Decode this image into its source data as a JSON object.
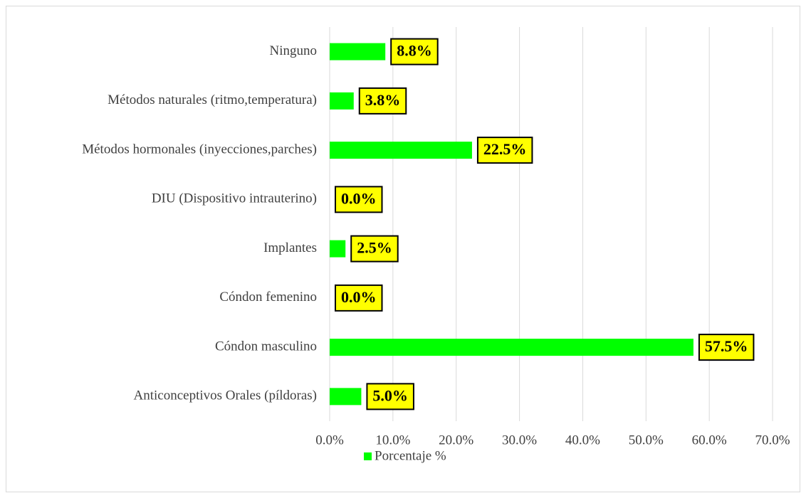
{
  "chart_data": {
    "type": "bar",
    "orientation": "horizontal",
    "categories": [
      "Ninguno",
      "Métodos naturales (ritmo,temperatura)",
      "Métodos hormonales (inyecciones,parches)",
      "DIU (Dispositivo intrauterino)",
      "Implantes",
      "Cóndon femenino",
      "Cóndon masculino",
      "Anticonceptivos Orales (píldoras)"
    ],
    "series": [
      {
        "name": "Porcentaje %",
        "color": "#00ff00",
        "values": [
          8.8,
          3.8,
          22.5,
          0.0,
          2.5,
          0.0,
          57.5,
          5.0
        ],
        "value_labels": [
          "8.8%",
          "3.8%",
          "22.5%",
          "0.0%",
          "2.5%",
          "0.0%",
          "57.5%",
          "5.0%"
        ]
      }
    ],
    "xlim": [
      0,
      70
    ],
    "xticks": [
      {
        "value": 0,
        "label": "0.0%"
      },
      {
        "value": 10,
        "label": "10.0%"
      },
      {
        "value": 20,
        "label": "20.0%"
      },
      {
        "value": 30,
        "label": "30.0%"
      },
      {
        "value": 40,
        "label": "40.0%"
      },
      {
        "value": 50,
        "label": "50.0%"
      },
      {
        "value": 60,
        "label": "60.0%"
      },
      {
        "value": 70,
        "label": "70.0%"
      }
    ],
    "grid": true,
    "legend": "bottom"
  }
}
